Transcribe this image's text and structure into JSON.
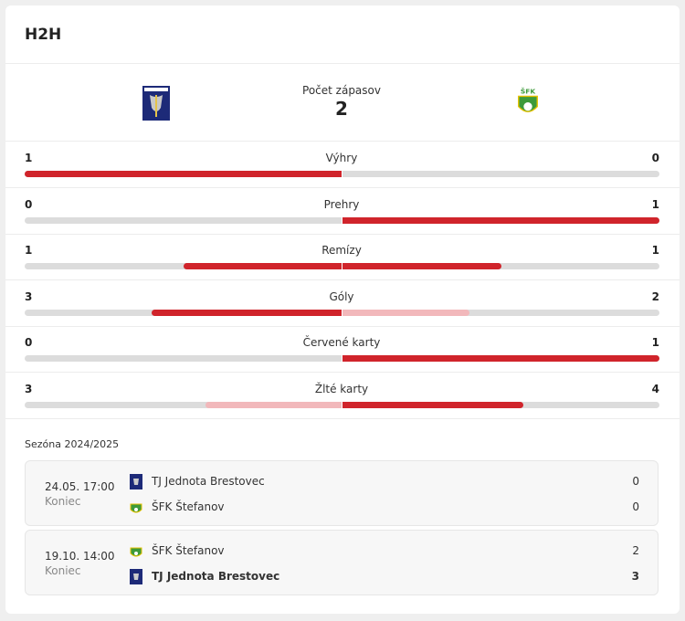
{
  "header": {
    "title": "H2H"
  },
  "summary": {
    "label": "Počet zápasov",
    "value": 2
  },
  "stats": [
    {
      "label": "Výhry",
      "home": 1,
      "away": 0
    },
    {
      "label": "Prehry",
      "home": 0,
      "away": 1
    },
    {
      "label": "Remízy",
      "home": 1,
      "away": 1
    },
    {
      "label": "Góly",
      "home": 3,
      "away": 2
    },
    {
      "label": "Červené karty",
      "home": 0,
      "away": 1
    },
    {
      "label": "Žlté karty",
      "home": 3,
      "away": 4
    }
  ],
  "season": "Sezóna 2024/2025",
  "matches": [
    {
      "date": "24.05. 17:00",
      "status": "Koniec",
      "teams": [
        {
          "name": "TJ Jednota Brestovec",
          "score": 0,
          "winner": false
        },
        {
          "name": "ŠFK Štefanov",
          "score": 0,
          "winner": false
        }
      ]
    },
    {
      "date": "19.10. 14:00",
      "status": "Koniec",
      "teams": [
        {
          "name": "ŠFK Štefanov",
          "score": 2,
          "winner": false
        },
        {
          "name": "TJ Jednota Brestovec",
          "score": 3,
          "winner": true
        }
      ]
    }
  ]
}
